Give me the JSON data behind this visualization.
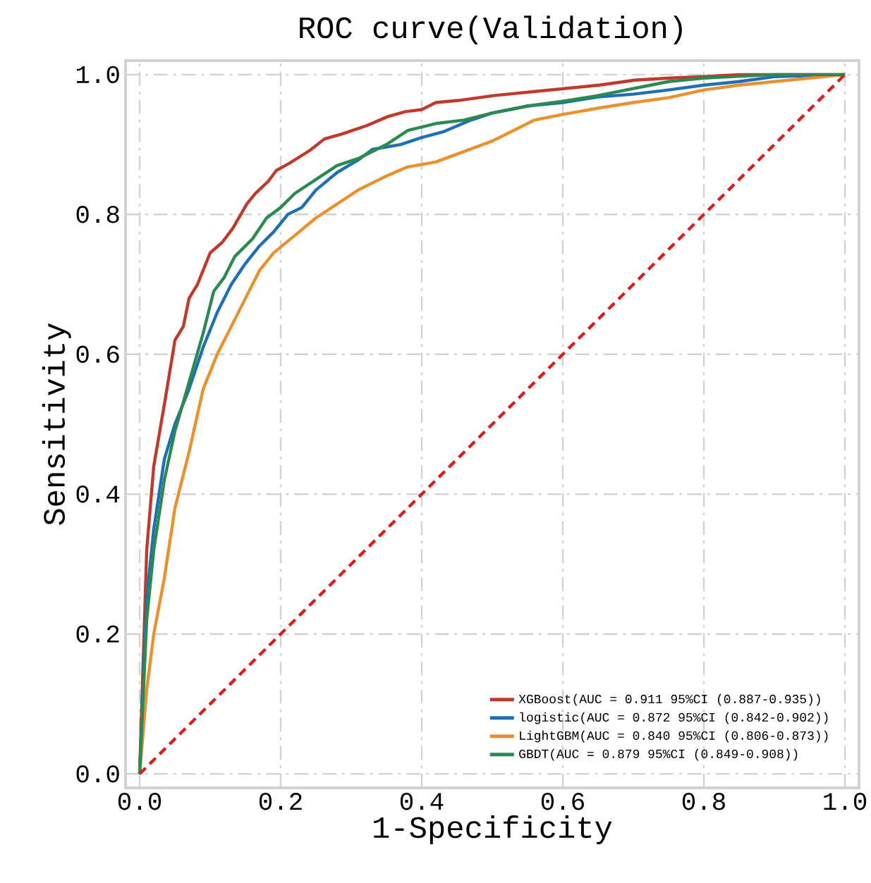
{
  "chart_data": {
    "type": "line",
    "title": "ROC curve(Validation)",
    "xlabel": "1-Specificity",
    "ylabel": "Sensitivity",
    "xlim": [
      -0.02,
      1.02
    ],
    "ylim": [
      -0.02,
      1.02
    ],
    "xticks": [
      {
        "value": 0,
        "label": "0.0"
      },
      0.2,
      0.4,
      0.6,
      0.8,
      {
        "value": 1,
        "label": "1.0"
      }
    ],
    "yticks": [
      {
        "value": 0,
        "label": "0.0"
      },
      0.2,
      0.4,
      0.6,
      0.8,
      {
        "value": 1,
        "label": "1.0"
      }
    ],
    "grid": true,
    "legend": "bottom right",
    "series": [
      {
        "name": "XGBoost(AUC = 0.911 95%CI (0.887-0.935))",
        "color": "#c0392b",
        "x": [
          0,
          0.01,
          0.02,
          0.037,
          0.05,
          0.062,
          0.07,
          0.082,
          0.1,
          0.117,
          0.132,
          0.152,
          0.164,
          0.182,
          0.194,
          0.212,
          0.242,
          0.262,
          0.287,
          0.322,
          0.352,
          0.377,
          0.4,
          0.42,
          0.452,
          0.502,
          0.552,
          0.602,
          0.652,
          0.702,
          0.752,
          0.8,
          0.85,
          1
        ],
        "values": [
          0,
          0.32,
          0.44,
          0.54,
          0.62,
          0.64,
          0.68,
          0.7,
          0.745,
          0.76,
          0.78,
          0.815,
          0.83,
          0.847,
          0.863,
          0.873,
          0.892,
          0.908,
          0.915,
          0.927,
          0.94,
          0.947,
          0.95,
          0.96,
          0.963,
          0.97,
          0.975,
          0.98,
          0.985,
          0.992,
          0.995,
          0.997,
          1,
          1
        ]
      },
      {
        "name": "logistic(AUC = 0.872 95%CI (0.842-0.902))",
        "color": "#1f6fb4",
        "x": [
          0,
          0.01,
          0.02,
          0.035,
          0.05,
          0.07,
          0.09,
          0.11,
          0.13,
          0.15,
          0.17,
          0.19,
          0.21,
          0.23,
          0.25,
          0.28,
          0.31,
          0.33,
          0.37,
          0.4,
          0.43,
          0.47,
          0.5,
          0.55,
          0.6,
          0.65,
          0.7,
          0.75,
          0.8,
          0.85,
          0.9,
          1
        ],
        "values": [
          0,
          0.25,
          0.35,
          0.45,
          0.5,
          0.55,
          0.61,
          0.66,
          0.7,
          0.73,
          0.755,
          0.775,
          0.8,
          0.81,
          0.835,
          0.86,
          0.878,
          0.893,
          0.9,
          0.91,
          0.918,
          0.935,
          0.945,
          0.955,
          0.96,
          0.968,
          0.972,
          0.978,
          0.985,
          0.99,
          0.997,
          1
        ]
      },
      {
        "name": "LightGBM(AUC = 0.840 95%CI (0.806-0.873))",
        "color": "#e8912d",
        "x": [
          0,
          0.01,
          0.02,
          0.035,
          0.05,
          0.07,
          0.09,
          0.11,
          0.13,
          0.15,
          0.17,
          0.19,
          0.22,
          0.25,
          0.28,
          0.31,
          0.35,
          0.38,
          0.42,
          0.46,
          0.5,
          0.53,
          0.56,
          0.6,
          0.65,
          0.7,
          0.75,
          0.8,
          0.85,
          0.9,
          0.95,
          1
        ],
        "values": [
          0,
          0.12,
          0.2,
          0.28,
          0.38,
          0.46,
          0.55,
          0.6,
          0.64,
          0.68,
          0.72,
          0.745,
          0.77,
          0.795,
          0.815,
          0.835,
          0.855,
          0.868,
          0.875,
          0.89,
          0.905,
          0.92,
          0.935,
          0.943,
          0.952,
          0.96,
          0.967,
          0.978,
          0.985,
          0.99,
          0.995,
          1
        ]
      },
      {
        "name": "GBDT(AUC = 0.879 95%CI (0.849-0.908))",
        "color": "#2a8a4f",
        "x": [
          0,
          0.01,
          0.02,
          0.035,
          0.05,
          0.07,
          0.09,
          0.105,
          0.12,
          0.135,
          0.16,
          0.18,
          0.2,
          0.22,
          0.25,
          0.28,
          0.31,
          0.35,
          0.38,
          0.42,
          0.46,
          0.5,
          0.55,
          0.6,
          0.65,
          0.7,
          0.75,
          0.8,
          0.9,
          1
        ],
        "values": [
          0,
          0.22,
          0.32,
          0.42,
          0.49,
          0.56,
          0.63,
          0.69,
          0.71,
          0.74,
          0.765,
          0.795,
          0.81,
          0.83,
          0.85,
          0.87,
          0.88,
          0.9,
          0.92,
          0.93,
          0.935,
          0.945,
          0.955,
          0.962,
          0.97,
          0.98,
          0.99,
          0.995,
          1,
          1
        ]
      },
      {
        "type": "line",
        "color": "#dd1c1c",
        "line_style": "dashed",
        "x": [
          0,
          1
        ],
        "values": [
          0,
          1
        ]
      }
    ]
  }
}
